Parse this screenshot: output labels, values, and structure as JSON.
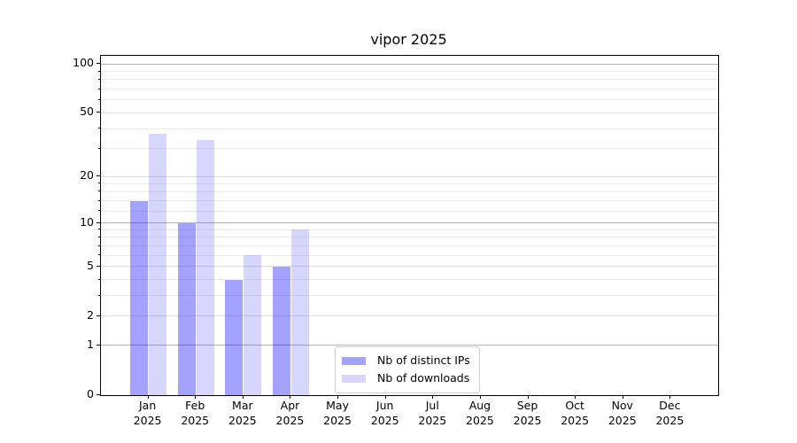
{
  "chart_data": {
    "type": "bar",
    "title": "vipor 2025",
    "categories": [
      "Jan",
      "Feb",
      "Mar",
      "Apr",
      "May",
      "Jun",
      "Jul",
      "Aug",
      "Sep",
      "Oct",
      "Nov",
      "Dec"
    ],
    "year_label": "2025",
    "series": [
      {
        "name": "Nb of distinct IPs",
        "color": "#0000ff",
        "alpha": 0.36,
        "values": [
          14,
          10,
          4,
          5,
          0,
          0,
          0,
          0,
          0,
          0,
          0,
          0
        ]
      },
      {
        "name": "Nb of downloads",
        "color": "#0000ff",
        "alpha": 0.16,
        "values": [
          37,
          34,
          6,
          9,
          0,
          0,
          0,
          0,
          0,
          0,
          0,
          0
        ]
      }
    ],
    "xlabel": "",
    "ylabel": "",
    "yscale": "log10(1+x)",
    "ylim": [
      0,
      112
    ],
    "y_major_ticks": [
      0,
      1,
      2,
      5,
      10,
      20,
      50,
      100
    ],
    "y_decade_lines": [
      1,
      10,
      100
    ],
    "y_minor_lines": [
      3,
      4,
      6,
      7,
      8,
      9,
      12,
      14,
      16,
      18,
      30,
      40,
      60,
      70,
      80,
      90
    ],
    "grid": true,
    "legend_position": "lower center"
  }
}
